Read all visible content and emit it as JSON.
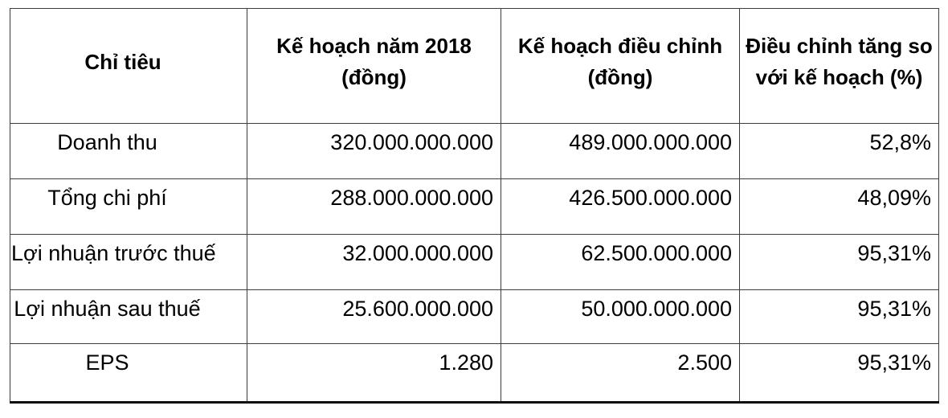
{
  "table": {
    "columns": [
      {
        "label": "Chỉ tiêu"
      },
      {
        "label": "Kế hoạch năm 2018 (đồng)"
      },
      {
        "label": "Kế hoạch điều chỉnh (đồng)"
      },
      {
        "label": "Điều chỉnh tăng so với kế hoạch (%)"
      }
    ],
    "rows": [
      [
        "Doanh thu",
        "320.000.000.000",
        "489.000.000.000",
        "52,8%"
      ],
      [
        "Tổng chi phí",
        "288.000.000.000",
        "426.500.000.000",
        "48,09%"
      ],
      [
        "Lợi nhuận trước thuế",
        "32.000.000.000",
        "62.500.000.000",
        "95,31%"
      ],
      [
        "Lợi nhuận sau thuế",
        "25.600.000.000",
        "50.000.000.000",
        "95,31%"
      ],
      [
        "EPS",
        "1.280",
        "2.500",
        "95,31%"
      ]
    ],
    "text_color": "#000000",
    "border_color": "#3d3d3d",
    "background_color": "#ffffff"
  }
}
